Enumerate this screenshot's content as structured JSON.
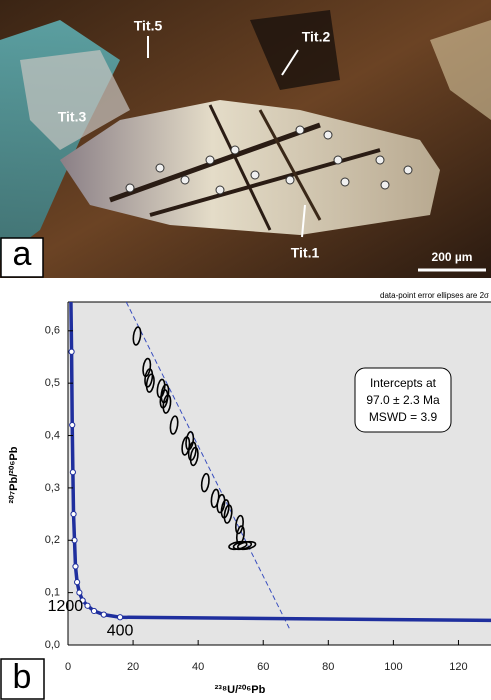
{
  "panel_a": {
    "label": "a",
    "annotations": [
      "Tit.5",
      "Tit.2",
      "Tit.3",
      "Tit.1"
    ],
    "scale_bar": "200 µm"
  },
  "chart_data": {
    "type": "scatter",
    "panel_label": "b",
    "subtitle": "data-point error ellipses are 2σ",
    "xlabel": "²³⁸U/²⁰⁶Pb",
    "ylabel": "²⁰⁷Pb/²⁰⁶Pb",
    "xlim": [
      0,
      130
    ],
    "ylim": [
      0,
      0.655
    ],
    "xticks": [
      0,
      20,
      40,
      60,
      80,
      100,
      120
    ],
    "yticks": [
      {
        "value": 0,
        "label": "0,0"
      },
      {
        "value": 0.1,
        "label": "0,1"
      },
      {
        "value": 0.2,
        "label": "0,2"
      },
      {
        "value": 0.3,
        "label": "0,3"
      },
      {
        "value": 0.4,
        "label": "0,4"
      },
      {
        "value": 0.5,
        "label": "0,5"
      },
      {
        "value": 0.6,
        "label": "0,6"
      }
    ],
    "points": {
      "color": "#000000",
      "x": [
        21.2,
        24.2,
        24.8,
        25.3,
        28.6,
        29.5,
        30.4,
        29.8,
        32.6,
        36.2,
        37.4,
        38.2,
        38.8,
        42.2,
        45.2,
        47.0,
        48.3,
        49.2,
        52.7,
        53.0,
        52.2,
        53.6,
        54.9
      ],
      "y": [
        0.59,
        0.53,
        0.51,
        0.5,
        0.49,
        0.47,
        0.46,
        0.48,
        0.42,
        0.38,
        0.39,
        0.37,
        0.36,
        0.31,
        0.28,
        0.27,
        0.26,
        0.25,
        0.23,
        0.21,
        0.19,
        0.19,
        0.19
      ]
    },
    "concordia": {
      "color": "#1f2f9e",
      "x": [
        0.9,
        1.1,
        1.3,
        1.5,
        1.7,
        2.0,
        2.3,
        2.8,
        3.5,
        4.5,
        6,
        8,
        11,
        16,
        130
      ],
      "y": [
        0.655,
        0.56,
        0.42,
        0.33,
        0.25,
        0.2,
        0.15,
        0.12,
        0.1,
        0.085,
        0.075,
        0.065,
        0.058,
        0.053,
        0.047
      ],
      "age_labels": [
        1200,
        400
      ]
    },
    "discordia": {
      "color": "#3a4fbf",
      "x": [
        17.9,
        68
      ],
      "y": [
        0.655,
        0.032
      ]
    },
    "annotation": [
      "Intercepts at",
      "97.0 ± 2.3 Ma",
      "MSWD = 3.9"
    ]
  }
}
